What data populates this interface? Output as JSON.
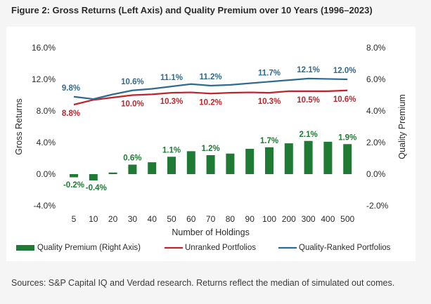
{
  "title": "Figure 2: Gross Returns (Left Axis) and Quality Premium over 10 Years (1996–2023)",
  "sources": "Sources: S&P Capital IQ and Verdad research. Returns reflect the median of simulated out comes.",
  "colors": {
    "bar": "#1f7a33",
    "unranked": "#c0242b",
    "ranked": "#2f6b8e",
    "background": "#f5f5f5",
    "card": "#ffffff"
  },
  "chart_data": {
    "type": "bar+line",
    "title": "Figure 2: Gross Returns (Left Axis) and Quality Premium over 10 Years (1996–2023)",
    "categories": [
      "5",
      "10",
      "20",
      "30",
      "40",
      "50",
      "60",
      "70",
      "80",
      "90",
      "100",
      "200",
      "300",
      "400",
      "500"
    ],
    "xlabel": "Number of Holdings",
    "ylabel_left": "Gross Returns",
    "ylabel_right": "Quality Premium",
    "ylim_left": [
      -4.0,
      16.0
    ],
    "ylim_right": [
      -2.0,
      8.0
    ],
    "yticks_left": [
      "16.0%",
      "12.0%",
      "8.0%",
      "4.0%",
      "0.0%",
      "-4.0%"
    ],
    "yticks_right": [
      "8.0%",
      "6.0%",
      "4.0%",
      "2.0%",
      "0.0%",
      "-2.0%"
    ],
    "grid": false,
    "legend_position": "bottom",
    "series": [
      {
        "name": "Quality Premium (Right Axis)",
        "kind": "bar",
        "axis": "right",
        "values": [
          -0.2,
          -0.4,
          0.1,
          0.6,
          0.75,
          1.1,
          1.45,
          1.2,
          1.3,
          1.6,
          1.7,
          1.95,
          2.1,
          2.05,
          1.9
        ],
        "labels": {
          "0": "-0.2%",
          "1": "-0.4%",
          "3": "0.6%",
          "5": "1.1%",
          "7": "1.2%",
          "10": "1.7%",
          "12": "2.1%",
          "14": "1.9%"
        }
      },
      {
        "name": "Unranked Portfolios",
        "kind": "line",
        "axis": "left",
        "values": [
          8.8,
          9.4,
          9.7,
          10.0,
          10.1,
          10.3,
          10.35,
          10.2,
          10.3,
          10.35,
          10.3,
          10.5,
          10.5,
          10.5,
          10.6
        ],
        "labels": {
          "0": "8.8%",
          "3": "10.0%",
          "5": "10.3%",
          "7": "10.2%",
          "10": "10.3%",
          "12": "10.5%",
          "14": "10.6%"
        }
      },
      {
        "name": "Quality-Ranked Portfolios",
        "kind": "line",
        "axis": "left",
        "values": [
          9.8,
          9.5,
          10.1,
          10.6,
          10.8,
          11.1,
          11.4,
          11.2,
          11.3,
          11.5,
          11.7,
          11.9,
          12.1,
          12.05,
          12.0
        ],
        "labels": {
          "0": "9.8%",
          "3": "10.6%",
          "5": "11.1%",
          "7": "11.2%",
          "10": "11.7%",
          "12": "12.1%",
          "14": "12.0%"
        }
      }
    ]
  }
}
